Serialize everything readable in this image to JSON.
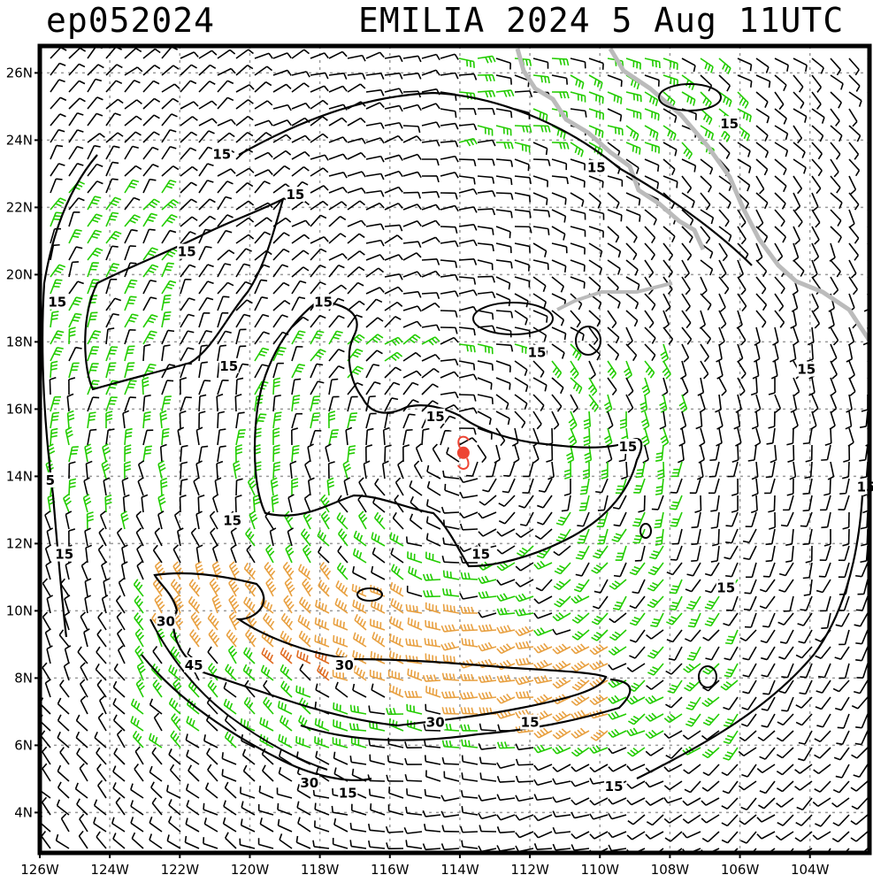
{
  "header": {
    "storm_id": "ep052024",
    "storm_name_date": "EMILIA 2024   5 Aug 11UTC"
  },
  "map": {
    "lon_range": [
      -126,
      -102.3
    ],
    "lat_range": [
      2.8,
      26.8
    ],
    "lon_ticks": [
      "126W",
      "124W",
      "122W",
      "120W",
      "118W",
      "116W",
      "114W",
      "112W",
      "110W",
      "108W",
      "106W",
      "104W"
    ],
    "lat_ticks": [
      "4N",
      "6N",
      "8N",
      "10N",
      "12N",
      "14N",
      "16N",
      "18N",
      "20N",
      "22N",
      "24N",
      "26N"
    ],
    "storm_center": {
      "lon": -113.9,
      "lat": 14.7
    },
    "colors": {
      "calm_barbs": "#000000",
      "barbs_15kt": "#22cc00",
      "barbs_30kt": "#e8a040",
      "barbs_45kt": "#e06a20",
      "coastline": "#bbbbbb",
      "storm_symbol": "#ee4433",
      "grid": "#999999"
    },
    "contour_labels": [
      {
        "text": "15",
        "lon": -120.8,
        "lat": 23.5
      },
      {
        "text": "15",
        "lon": -118.7,
        "lat": 22.3
      },
      {
        "text": "15",
        "lon": -121.8,
        "lat": 20.6
      },
      {
        "text": "15",
        "lon": -125.5,
        "lat": 19.1
      },
      {
        "text": "15",
        "lon": -117.9,
        "lat": 19.1
      },
      {
        "text": "15",
        "lon": -120.6,
        "lat": 17.2
      },
      {
        "text": "15",
        "lon": -114.7,
        "lat": 15.7
      },
      {
        "text": "15",
        "lon": -111.8,
        "lat": 17.6
      },
      {
        "text": "15",
        "lon": -110.1,
        "lat": 23.1
      },
      {
        "text": "15",
        "lon": -106.3,
        "lat": 24.4
      },
      {
        "text": "15",
        "lon": -104.1,
        "lat": 17.1
      },
      {
        "text": "15",
        "lon": -109.2,
        "lat": 14.8
      },
      {
        "text": "15",
        "lon": -102.4,
        "lat": 13.6
      },
      {
        "text": "15",
        "lon": -106.4,
        "lat": 10.6
      },
      {
        "text": "5",
        "lon": -125.7,
        "lat": 13.8
      },
      {
        "text": "15",
        "lon": -120.5,
        "lat": 12.6
      },
      {
        "text": "15",
        "lon": -125.3,
        "lat": 11.6
      },
      {
        "text": "15",
        "lon": -113.4,
        "lat": 11.6
      },
      {
        "text": "30",
        "lon": -122.4,
        "lat": 9.6
      },
      {
        "text": "45",
        "lon": -121.6,
        "lat": 8.3
      },
      {
        "text": "30",
        "lon": -117.3,
        "lat": 8.3
      },
      {
        "text": "30",
        "lon": -114.7,
        "lat": 6.6
      },
      {
        "text": "15",
        "lon": -112.0,
        "lat": 6.6
      },
      {
        "text": "30",
        "lon": -118.3,
        "lat": 4.8
      },
      {
        "text": "15",
        "lon": -117.2,
        "lat": 4.5
      },
      {
        "text": "15",
        "lon": -109.6,
        "lat": 4.7
      }
    ]
  }
}
